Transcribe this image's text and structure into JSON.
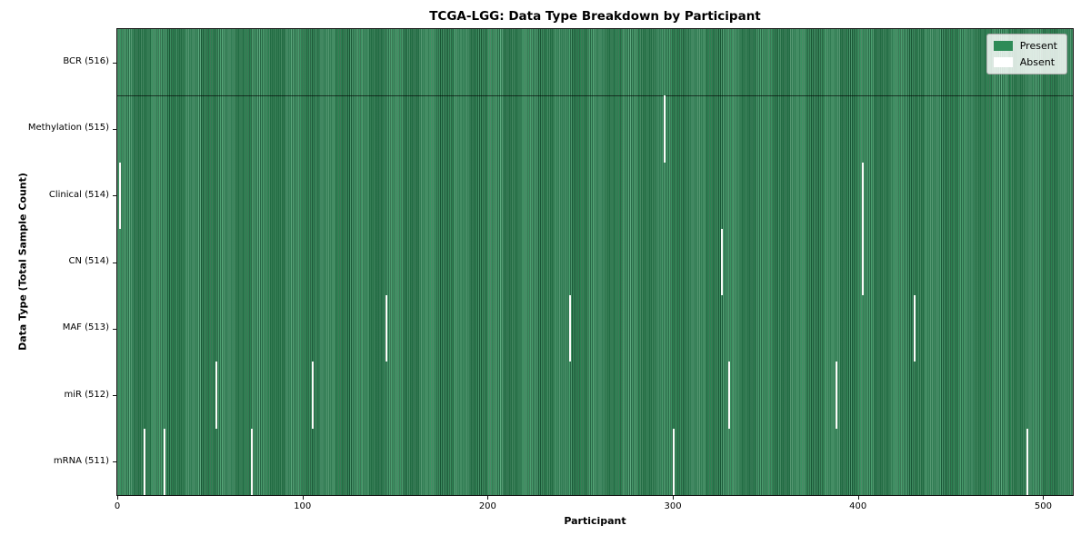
{
  "chart_data": {
    "type": "heatmap",
    "title": "TCGA-LGG: Data Type Breakdown by Participant",
    "xlabel": "Participant",
    "ylabel": "Data Type (Total Sample Count)",
    "x_ticks": [
      0,
      100,
      200,
      300,
      400,
      500
    ],
    "x_range": [
      0,
      516
    ],
    "n_participants": 516,
    "grid": false,
    "legend_position": "upper right",
    "legend": [
      {
        "label": "Present",
        "color": "#2e8b57"
      },
      {
        "label": "Absent",
        "color": "#ffffff"
      }
    ],
    "rows": [
      {
        "label": "BCR (516)",
        "data_type": "BCR",
        "total_samples": 516,
        "absent_participants": []
      },
      {
        "label": "Methylation (515)",
        "data_type": "Methylation",
        "total_samples": 515,
        "absent_participants": [
          295
        ]
      },
      {
        "label": "Clinical (514)",
        "data_type": "Clinical",
        "total_samples": 514,
        "absent_participants": [
          1,
          402
        ]
      },
      {
        "label": "CN (514)",
        "data_type": "CN",
        "total_samples": 514,
        "absent_participants": [
          326,
          402
        ]
      },
      {
        "label": "MAF (513)",
        "data_type": "MAF",
        "total_samples": 513,
        "absent_participants": [
          145,
          244,
          430
        ]
      },
      {
        "label": "miR (512)",
        "data_type": "miR",
        "total_samples": 512,
        "absent_participants": [
          53,
          105,
          330,
          388
        ]
      },
      {
        "label": "mRNA (511)",
        "data_type": "mRNA",
        "total_samples": 511,
        "absent_participants": [
          14,
          25,
          72,
          300,
          491
        ]
      }
    ],
    "colors": {
      "present": "#2e8b57",
      "absent": "#ffffff",
      "row_separator": "#0d2f1c",
      "spine": "#141414",
      "legend_background": "#e9ede7"
    }
  }
}
